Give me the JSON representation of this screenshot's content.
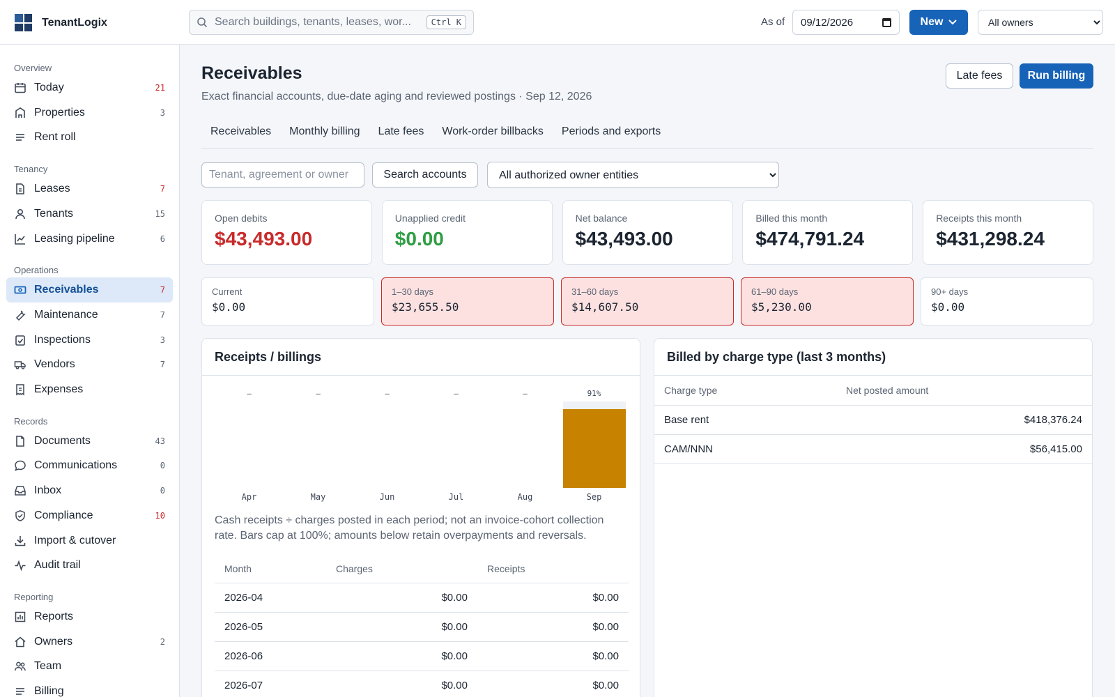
{
  "app": {
    "name": "TenantLogix"
  },
  "search": {
    "placeholder": "Search buildings, tenants, leases, wor...",
    "shortcut": "Ctrl K"
  },
  "header": {
    "as_of_label": "As of",
    "as_of_value": "09/12/2026",
    "new_label": "New",
    "owner_filter": "All owners"
  },
  "sidebar": {
    "sections": [
      {
        "label": "Overview",
        "items": [
          {
            "label": "Today",
            "count": "21",
            "alert": true,
            "icon": "calendar-icon"
          },
          {
            "label": "Properties",
            "count": "3",
            "alert": false,
            "icon": "building-icon"
          },
          {
            "label": "Rent roll",
            "count": "",
            "alert": false,
            "icon": "list-icon"
          }
        ]
      },
      {
        "label": "Tenancy",
        "items": [
          {
            "label": "Leases",
            "count": "7",
            "alert": true,
            "icon": "document-icon"
          },
          {
            "label": "Tenants",
            "count": "15",
            "alert": false,
            "icon": "user-icon"
          },
          {
            "label": "Leasing pipeline",
            "count": "6",
            "alert": false,
            "icon": "chart-line-icon"
          }
        ]
      },
      {
        "label": "Operations",
        "items": [
          {
            "label": "Receivables",
            "count": "7",
            "alert": true,
            "icon": "money-icon",
            "active": true
          },
          {
            "label": "Maintenance",
            "count": "7",
            "alert": false,
            "icon": "wrench-icon"
          },
          {
            "label": "Inspections",
            "count": "3",
            "alert": false,
            "icon": "clipboard-check-icon"
          },
          {
            "label": "Vendors",
            "count": "7",
            "alert": false,
            "icon": "truck-icon"
          },
          {
            "label": "Expenses",
            "count": "",
            "alert": false,
            "icon": "receipt-icon"
          }
        ]
      },
      {
        "label": "Records",
        "items": [
          {
            "label": "Documents",
            "count": "43",
            "alert": false,
            "icon": "file-icon"
          },
          {
            "label": "Communications",
            "count": "0",
            "alert": false,
            "icon": "chat-icon"
          },
          {
            "label": "Inbox",
            "count": "0",
            "alert": false,
            "icon": "inbox-icon"
          },
          {
            "label": "Compliance",
            "count": "10",
            "alert": true,
            "icon": "shield-icon"
          },
          {
            "label": "Import & cutover",
            "count": "",
            "alert": false,
            "icon": "download-icon"
          },
          {
            "label": "Audit trail",
            "count": "",
            "alert": false,
            "icon": "activity-icon"
          }
        ]
      },
      {
        "label": "Reporting",
        "items": [
          {
            "label": "Reports",
            "count": "",
            "alert": false,
            "icon": "bar-chart-icon"
          },
          {
            "label": "Owners",
            "count": "2",
            "alert": false,
            "icon": "home-icon"
          },
          {
            "label": "Team",
            "count": "",
            "alert": false,
            "icon": "team-icon"
          },
          {
            "label": "Billing",
            "count": "",
            "alert": false,
            "icon": "list-icon"
          }
        ]
      }
    ]
  },
  "page": {
    "title": "Receivables",
    "subtitle": "Exact financial accounts, due-date aging and reviewed postings · Sep 12, 2026",
    "late_fees_button": "Late fees",
    "run_billing_button": "Run billing",
    "tabs": [
      "Receivables",
      "Monthly billing",
      "Late fees",
      "Work-order billbacks",
      "Periods and exports"
    ]
  },
  "filters": {
    "account_placeholder": "Tenant, agreement or owner",
    "search_button": "Search accounts",
    "entity_select": "All authorized owner entities"
  },
  "stats": [
    {
      "label": "Open debits",
      "value": "$43,493.00",
      "tone": "red"
    },
    {
      "label": "Unapplied credit",
      "value": "$0.00",
      "tone": "green"
    },
    {
      "label": "Net balance",
      "value": "$43,493.00",
      "tone": ""
    },
    {
      "label": "Billed this month",
      "value": "$474,791.24",
      "tone": ""
    },
    {
      "label": "Receipts this month",
      "value": "$431,298.24",
      "tone": ""
    }
  ],
  "aging": [
    {
      "label": "Current",
      "value": "$0.00",
      "alert": false
    },
    {
      "label": "1–30 days",
      "value": "$23,655.50",
      "alert": true
    },
    {
      "label": "31–60 days",
      "value": "$14,607.50",
      "alert": true
    },
    {
      "label": "61–90 days",
      "value": "$5,230.00",
      "alert": true
    },
    {
      "label": "90+ days",
      "value": "$0.00",
      "alert": false
    }
  ],
  "receipts_card": {
    "title": "Receipts / billings",
    "note": "Cash receipts ÷ charges posted in each period; not an invoice-cohort collection rate. Bars cap at 100%; amounts below retain overpayments and reversals.",
    "columns": [
      "Month",
      "Charges",
      "Receipts"
    ],
    "rows": [
      [
        "2026-04",
        "$0.00",
        "$0.00"
      ],
      [
        "2026-05",
        "$0.00",
        "$0.00"
      ],
      [
        "2026-06",
        "$0.00",
        "$0.00"
      ],
      [
        "2026-07",
        "$0.00",
        "$0.00"
      ]
    ]
  },
  "chart_data": {
    "type": "bar",
    "categories": [
      "Apr",
      "May",
      "Jun",
      "Jul",
      "Aug",
      "Sep"
    ],
    "values": [
      null,
      null,
      null,
      null,
      null,
      91
    ],
    "labels": [
      "–",
      "–",
      "–",
      "–",
      "–",
      "91%"
    ],
    "ylim": [
      0,
      100
    ],
    "colors": {
      "bar": "#c78200",
      "track": "#eef1f5"
    }
  },
  "charge_card": {
    "title": "Billed by charge type (last 3 months)",
    "columns": [
      "Charge type",
      "Net posted amount"
    ],
    "rows": [
      [
        "Base rent",
        "$418,376.24"
      ],
      [
        "CAM/NNN",
        "$56,415.00"
      ]
    ]
  },
  "colors": {
    "primary": "#1763b8",
    "danger": "#c92a2a",
    "success": "#2f9e44",
    "alert_bg": "#fde1e1"
  }
}
